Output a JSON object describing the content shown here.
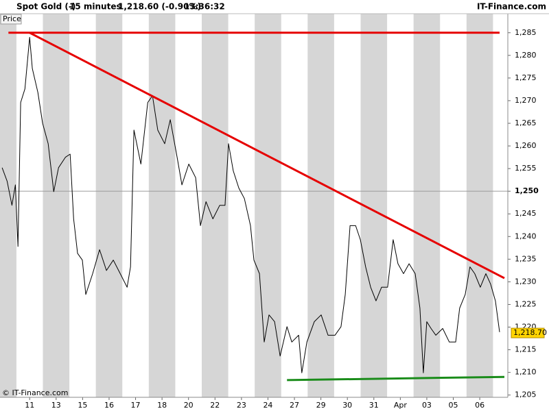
{
  "chart_data": {
    "type": "line",
    "title": "Spot Gold (-)",
    "interval": "15 minutes",
    "quote": "1,218.60 (-0.90%)",
    "time": "13:36:32",
    "source": "IT-Finance.com",
    "y_label": "Price",
    "footer": "© IT-Finance.com",
    "xlim": [
      -1.12,
      18.06
    ],
    "ylim": [
      1204.5,
      1289.2
    ],
    "xticks": [
      {
        "value": 0,
        "label": "11"
      },
      {
        "value": 1,
        "label": "13"
      },
      {
        "value": 2,
        "label": "15"
      },
      {
        "value": 3,
        "label": "16"
      },
      {
        "value": 4,
        "label": "17"
      },
      {
        "value": 5,
        "label": "18"
      },
      {
        "value": 6,
        "label": "20"
      },
      {
        "value": 7,
        "label": "22"
      },
      {
        "value": 8,
        "label": "23"
      },
      {
        "value": 9,
        "label": "24"
      },
      {
        "value": 10,
        "label": "27"
      },
      {
        "value": 11,
        "label": "29"
      },
      {
        "value": 12,
        "label": "30"
      },
      {
        "value": 13,
        "label": "31"
      },
      {
        "value": 14,
        "label": "Apr"
      },
      {
        "value": 15,
        "label": "03"
      },
      {
        "value": 16,
        "label": "05"
      },
      {
        "value": 17,
        "label": "06"
      }
    ],
    "yticks": [
      {
        "value": 1205,
        "label": "1,205"
      },
      {
        "value": 1210,
        "label": "1,210"
      },
      {
        "value": 1215,
        "label": "1,215"
      },
      {
        "value": 1220,
        "label": "1,220"
      },
      {
        "value": 1225,
        "label": "1,225"
      },
      {
        "value": 1230,
        "label": "1,230"
      },
      {
        "value": 1235,
        "label": "1,235"
      },
      {
        "value": 1240,
        "label": "1,240"
      },
      {
        "value": 1245,
        "label": "1,245"
      },
      {
        "value": 1250,
        "label": "1,250",
        "bold": true
      },
      {
        "value": 1255,
        "label": "1,255"
      },
      {
        "value": 1260,
        "label": "1,260"
      },
      {
        "value": 1265,
        "label": "1,265"
      },
      {
        "value": 1270,
        "label": "1,270"
      },
      {
        "value": 1275,
        "label": "1,275"
      },
      {
        "value": 1280,
        "label": "1,280"
      },
      {
        "value": 1285,
        "label": "1,285"
      }
    ],
    "series": [
      {
        "color": "#000000",
        "x": [
          -1.04,
          -0.85,
          -0.67,
          -0.54,
          -0.44,
          -0.34,
          -0.18,
          0,
          0.1,
          0.31,
          0.49,
          0.7,
          0.91,
          1.09,
          1.35,
          1.53,
          1.66,
          1.81,
          1.99,
          2.12,
          2.38,
          2.64,
          2.9,
          3.16,
          3.42,
          3.68,
          3.81,
          3.94,
          4.2,
          4.46,
          4.64,
          4.84,
          5.1,
          5.31,
          5.57,
          5.75,
          6.01,
          6.27,
          6.45,
          6.66,
          6.92,
          7.18,
          7.38,
          7.51,
          7.69,
          7.9,
          8.11,
          8.34,
          8.47,
          8.68,
          8.86,
          9.04,
          9.25,
          9.46,
          9.72,
          9.9,
          10.16,
          10.28,
          10.47,
          10.75,
          11.01,
          11.27,
          11.53,
          11.76,
          11.92,
          12.1,
          12.31,
          12.49,
          12.69,
          12.88,
          13.08,
          13.29,
          13.52,
          13.73,
          13.91,
          14.12,
          14.33,
          14.56,
          14.74,
          14.87,
          15.0,
          15.16,
          15.34,
          15.6,
          15.85,
          16.09,
          16.24,
          16.45,
          16.63,
          16.81,
          17.02,
          17.23,
          17.41,
          17.59,
          17.75
        ],
        "values": [
          1255.2,
          1252.2,
          1246.9,
          1251.4,
          1237.8,
          1269.6,
          1272.6,
          1284,
          1277.1,
          1271.8,
          1265,
          1260.5,
          1249.9,
          1255.2,
          1257.5,
          1258.2,
          1243.9,
          1236.3,
          1234.8,
          1227.2,
          1231.8,
          1237.1,
          1232.5,
          1234.8,
          1231.8,
          1228.8,
          1233.3,
          1263.5,
          1256,
          1269.6,
          1271.1,
          1263.5,
          1260.5,
          1265.8,
          1257.5,
          1251.4,
          1256,
          1253,
          1242.4,
          1247.7,
          1243.9,
          1246.9,
          1246.9,
          1260.5,
          1254.5,
          1250.7,
          1248.4,
          1242.4,
          1234.8,
          1231.8,
          1216.7,
          1222.7,
          1221.2,
          1213.6,
          1220.1,
          1216.7,
          1218.2,
          1209.9,
          1216.7,
          1221.2,
          1222.7,
          1218.2,
          1218.2,
          1220.1,
          1227.2,
          1242.4,
          1242.4,
          1239.3,
          1233.3,
          1228.8,
          1225.8,
          1228.8,
          1228.8,
          1239.3,
          1234,
          1231.8,
          1234,
          1231.8,
          1224.2,
          1209.9,
          1221.2,
          1219.7,
          1218.2,
          1219.7,
          1216.7,
          1216.7,
          1224.2,
          1227.2,
          1233.3,
          1231.8,
          1228.8,
          1231.8,
          1229.5,
          1225.8,
          1218.9
        ]
      }
    ],
    "trend_lines": [
      {
        "color": "#e60000",
        "x": [
          -0.8,
          17.75
        ],
        "values": [
          1285,
          1285
        ]
      },
      {
        "color": "#e60000",
        "x": [
          0,
          17.93
        ],
        "values": [
          1285,
          1230.8
        ]
      },
      {
        "color": "#1a8c1a",
        "x": [
          9.72,
          17.93
        ],
        "values": [
          1208.3,
          1209
        ]
      }
    ],
    "last_value": {
      "value": 1218.7,
      "label": "1,218.70"
    }
  }
}
